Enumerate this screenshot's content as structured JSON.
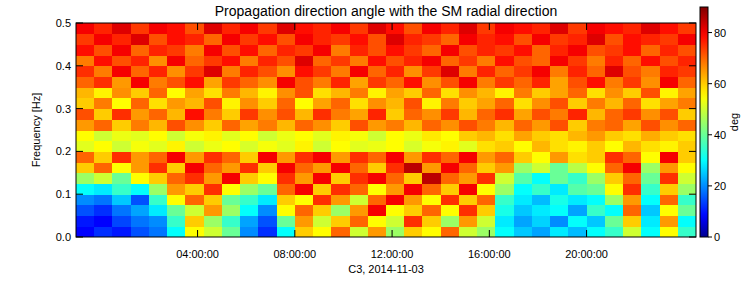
{
  "chart_data": {
    "type": "heatmap",
    "title": "Propagation direction angle with the SM radial direction",
    "x_label": "C3, 2014-11-03",
    "y_label": "Frequency [Hz]",
    "xlim": [
      -1,
      24.5
    ],
    "xticks": [
      {
        "value": 4,
        "label": "04:00:00"
      },
      {
        "value": 8,
        "label": "08:00:00"
      },
      {
        "value": 12,
        "label": "12:00:00"
      },
      {
        "value": 16,
        "label": "16:00:00"
      },
      {
        "value": 20,
        "label": "20:00:00"
      }
    ],
    "ylim": [
      0,
      0.5
    ],
    "yticks": [
      {
        "value": 0,
        "label": "0.0"
      },
      0.1,
      0.2,
      0.3,
      0.4,
      0.5
    ],
    "x_bins": [
      -1,
      -0.25,
      0.5,
      1.25,
      2,
      2.75,
      3.5,
      4.25,
      5,
      5.75,
      6.5,
      7.25,
      8,
      8.75,
      9.5,
      10.25,
      11,
      11.75,
      12.5,
      13.25,
      14,
      14.75,
      15.5,
      16.25,
      17,
      17.75,
      18.5,
      19.25,
      20,
      20.75,
      21.5,
      22.25,
      23,
      23.75,
      24.5
    ],
    "y_bins": [
      0,
      0.025,
      0.05,
      0.075,
      0.1,
      0.125,
      0.15,
      0.175,
      0.2,
      0.225,
      0.25,
      0.275,
      0.3,
      0.325,
      0.35,
      0.375,
      0.4,
      0.425,
      0.45,
      0.475,
      0.5
    ],
    "cells": [
      [
        8,
        12,
        10,
        15,
        18,
        30,
        55,
        50,
        40,
        20,
        12,
        30,
        60,
        55,
        70,
        50,
        65,
        45,
        60,
        55,
        70,
        50,
        45,
        30,
        25,
        22,
        28,
        24,
        30,
        35,
        50,
        30,
        55,
        35
      ],
      [
        10,
        8,
        14,
        18,
        20,
        35,
        60,
        45,
        35,
        22,
        15,
        40,
        65,
        50,
        60,
        70,
        55,
        50,
        75,
        60,
        45,
        65,
        50,
        28,
        22,
        26,
        20,
        30,
        25,
        40,
        60,
        28,
        65,
        30
      ],
      [
        15,
        12,
        18,
        22,
        28,
        40,
        50,
        65,
        45,
        30,
        20,
        55,
        70,
        60,
        45,
        65,
        80,
        55,
        60,
        70,
        55,
        75,
        60,
        32,
        25,
        28,
        30,
        22,
        35,
        30,
        70,
        25,
        55,
        40
      ],
      [
        20,
        18,
        25,
        15,
        35,
        55,
        70,
        60,
        40,
        35,
        28,
        60,
        55,
        75,
        65,
        50,
        70,
        80,
        65,
        55,
        75,
        60,
        70,
        35,
        28,
        24,
        32,
        28,
        30,
        45,
        65,
        30,
        70,
        35
      ],
      [
        30,
        28,
        35,
        30,
        45,
        65,
        60,
        75,
        55,
        45,
        40,
        70,
        80,
        60,
        75,
        70,
        55,
        65,
        80,
        70,
        60,
        80,
        55,
        45,
        30,
        35,
        28,
        38,
        40,
        55,
        75,
        35,
        60,
        45
      ],
      [
        45,
        50,
        40,
        55,
        60,
        70,
        75,
        65,
        80,
        60,
        55,
        75,
        65,
        80,
        60,
        75,
        80,
        70,
        60,
        85,
        70,
        65,
        75,
        50,
        38,
        30,
        40,
        35,
        45,
        60,
        70,
        40,
        75,
        50
      ],
      [
        60,
        70,
        55,
        65,
        75,
        60,
        80,
        70,
        65,
        75,
        60,
        80,
        70,
        65,
        80,
        70,
        60,
        75,
        85,
        65,
        80,
        70,
        60,
        65,
        45,
        50,
        40,
        48,
        55,
        70,
        80,
        45,
        65,
        55
      ],
      [
        70,
        60,
        75,
        65,
        70,
        80,
        65,
        75,
        70,
        60,
        80,
        65,
        75,
        80,
        65,
        75,
        70,
        80,
        65,
        75,
        70,
        80,
        65,
        70,
        60,
        55,
        65,
        58,
        60,
        75,
        70,
        55,
        80,
        60
      ],
      [
        52,
        55,
        50,
        54,
        52,
        56,
        50,
        53,
        55,
        51,
        54,
        52,
        56,
        50,
        55,
        52,
        53,
        55,
        51,
        54,
        56,
        52,
        58,
        60,
        55,
        62,
        58,
        56,
        60,
        55,
        62,
        58,
        56,
        60
      ],
      [
        55,
        50,
        53,
        52,
        55,
        50,
        54,
        56,
        52,
        55,
        50,
        53,
        55,
        52,
        56,
        54,
        50,
        55,
        53,
        57,
        55,
        60,
        62,
        58,
        64,
        60,
        58,
        62,
        65,
        60,
        58,
        63,
        60,
        58
      ],
      [
        65,
        70,
        60,
        68,
        62,
        72,
        66,
        60,
        70,
        64,
        68,
        62,
        70,
        66,
        60,
        72,
        65,
        68,
        62,
        70,
        66,
        72,
        68,
        62,
        70,
        65,
        72,
        60,
        68,
        70,
        64,
        72,
        66,
        70
      ],
      [
        72,
        60,
        75,
        65,
        70,
        62,
        78,
        68,
        60,
        74,
        66,
        72,
        62,
        75,
        68,
        64,
        76,
        60,
        70,
        66,
        74,
        62,
        70,
        75,
        64,
        72,
        68,
        76,
        62,
        70,
        74,
        66,
        72,
        60
      ],
      [
        60,
        68,
        55,
        70,
        58,
        65,
        62,
        72,
        56,
        66,
        60,
        70,
        55,
        64,
        70,
        58,
        66,
        62,
        72,
        56,
        68,
        60,
        64,
        70,
        58,
        66,
        72,
        60,
        68,
        62,
        70,
        58,
        64,
        68
      ],
      [
        62,
        56,
        66,
        60,
        70,
        55,
        64,
        58,
        68,
        62,
        56,
        66,
        72,
        58,
        62,
        68,
        56,
        64,
        60,
        70,
        58,
        66,
        62,
        56,
        68,
        60,
        64,
        70,
        58,
        66,
        60,
        72,
        56,
        64
      ],
      [
        70,
        75,
        65,
        80,
        68,
        72,
        78,
        64,
        74,
        70,
        66,
        80,
        72,
        68,
        76,
        64,
        74,
        70,
        78,
        66,
        72,
        80,
        68,
        74,
        70,
        76,
        64,
        72,
        78,
        68,
        74,
        66,
        80,
        70
      ],
      [
        75,
        68,
        80,
        70,
        76,
        66,
        74,
        82,
        68,
        76,
        72,
        66,
        78,
        74,
        68,
        80,
        70,
        76,
        66,
        74,
        82,
        68,
        76,
        70,
        74,
        80,
        68,
        76,
        70,
        82,
        72,
        68,
        76,
        74
      ],
      [
        68,
        78,
        72,
        76,
        66,
        80,
        70,
        74,
        78,
        68,
        76,
        72,
        82,
        70,
        74,
        68,
        78,
        72,
        76,
        80,
        70,
        74,
        68,
        78,
        72,
        70,
        80,
        74,
        68,
        76,
        70,
        78,
        72,
        76
      ],
      [
        78,
        72,
        80,
        70,
        76,
        74,
        68,
        80,
        72,
        78,
        70,
        76,
        74,
        80,
        68,
        76,
        72,
        78,
        74,
        70,
        80,
        72,
        76,
        74,
        78,
        70,
        76,
        80,
        72,
        74,
        78,
        70,
        76,
        72
      ],
      [
        74,
        80,
        76,
        82,
        72,
        78,
        76,
        70,
        80,
        74,
        78,
        72,
        80,
        76,
        74,
        78,
        72,
        82,
        76,
        74,
        70,
        80,
        76,
        78,
        72,
        80,
        74,
        76,
        82,
        72,
        78,
        76,
        74,
        80
      ],
      [
        80,
        76,
        82,
        74,
        80,
        78,
        72,
        82,
        76,
        80,
        74,
        82,
        78,
        76,
        80,
        74,
        82,
        78,
        72,
        80,
        76,
        82,
        74,
        80,
        78,
        76,
        82,
        74,
        80,
        78,
        76,
        82,
        78,
        74
      ]
    ],
    "colorbar": {
      "label": "deg",
      "range": [
        0,
        90
      ],
      "ticks": [
        0,
        20,
        40,
        60,
        80
      ]
    }
  }
}
